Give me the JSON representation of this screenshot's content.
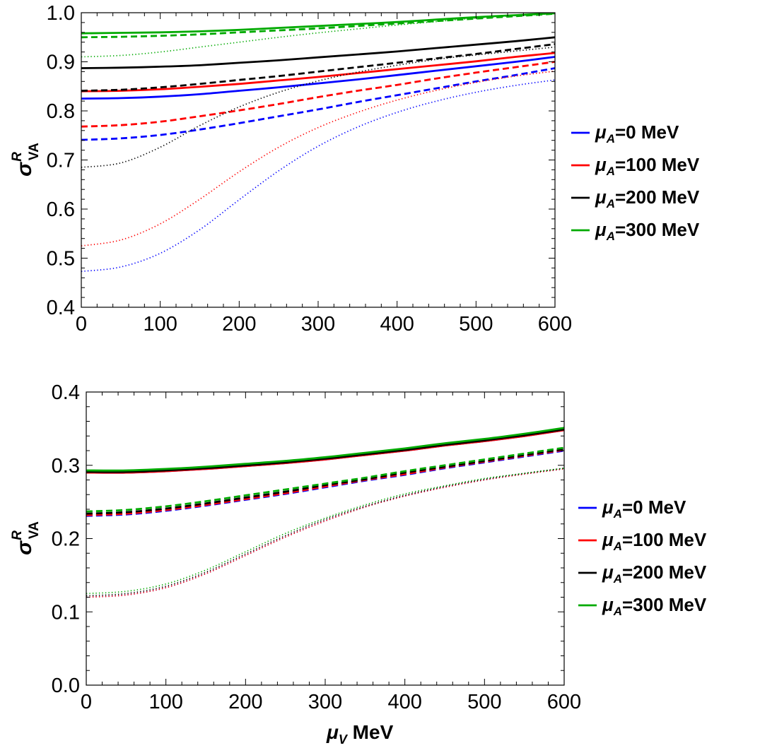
{
  "chart_data": [
    {
      "type": "line",
      "ylabel": {
        "symbol": "σ",
        "sup": "R",
        "sub": "VA"
      },
      "xlabel": null,
      "xlim": [
        0,
        600
      ],
      "ylim": [
        0.4,
        1.0
      ],
      "xticks": [
        "0",
        "100",
        "200",
        "300",
        "400",
        "500",
        "600"
      ],
      "yticks": [
        "0.4",
        "0.5",
        "0.6",
        "0.7",
        "0.8",
        "0.9",
        "1.0"
      ],
      "legend": {
        "position": "right",
        "entries": [
          {
            "sym": "μ",
            "sub": "A",
            "text": "=0 MeV",
            "color": "#0000ff"
          },
          {
            "sym": "μ",
            "sub": "A",
            "text": "=100 MeV",
            "color": "#ff0000"
          },
          {
            "sym": "μ",
            "sub": "A",
            "text": "=200 MeV",
            "color": "#000000"
          },
          {
            "sym": "μ",
            "sub": "A",
            "text": "=300 MeV",
            "color": "#00aa00"
          }
        ]
      },
      "x": [
        0,
        50,
        100,
        150,
        200,
        250,
        300,
        350,
        400,
        450,
        500,
        550,
        600
      ],
      "series": [
        {
          "color": "#0000ff",
          "style": "solid",
          "values": [
            0.825,
            0.826,
            0.829,
            0.834,
            0.841,
            0.848,
            0.856,
            0.864,
            0.873,
            0.882,
            0.891,
            0.9,
            0.91
          ]
        },
        {
          "color": "#ff0000",
          "style": "solid",
          "values": [
            0.84,
            0.841,
            0.844,
            0.849,
            0.855,
            0.862,
            0.869,
            0.877,
            0.885,
            0.893,
            0.901,
            0.91,
            0.918
          ]
        },
        {
          "color": "#000000",
          "style": "solid",
          "values": [
            0.887,
            0.888,
            0.89,
            0.893,
            0.898,
            0.903,
            0.909,
            0.915,
            0.921,
            0.928,
            0.935,
            0.942,
            0.95
          ]
        },
        {
          "color": "#00aa00",
          "style": "solid",
          "values": [
            0.958,
            0.959,
            0.96,
            0.962,
            0.965,
            0.969,
            0.973,
            0.977,
            0.981,
            0.986,
            0.991,
            0.995,
            0.999
          ]
        },
        {
          "color": "#0000ff",
          "style": "dashed",
          "values": [
            0.741,
            0.744,
            0.751,
            0.762,
            0.775,
            0.789,
            0.803,
            0.818,
            0.832,
            0.846,
            0.86,
            0.873,
            0.887
          ]
        },
        {
          "color": "#ff0000",
          "style": "dashed",
          "values": [
            0.768,
            0.771,
            0.778,
            0.789,
            0.801,
            0.814,
            0.828,
            0.841,
            0.853,
            0.866,
            0.878,
            0.889,
            0.9
          ]
        },
        {
          "color": "#000000",
          "style": "dashed",
          "values": [
            0.841,
            0.843,
            0.848,
            0.855,
            0.863,
            0.871,
            0.88,
            0.889,
            0.898,
            0.907,
            0.916,
            0.926,
            0.936
          ]
        },
        {
          "color": "#00aa00",
          "style": "dashed",
          "values": [
            0.95,
            0.951,
            0.953,
            0.956,
            0.96,
            0.964,
            0.968,
            0.973,
            0.978,
            0.983,
            0.988,
            0.993,
            0.998
          ]
        },
        {
          "color": "#0000ff",
          "style": "dotted",
          "values": [
            0.473,
            0.482,
            0.51,
            0.558,
            0.619,
            0.678,
            0.728,
            0.767,
            0.797,
            0.82,
            0.838,
            0.852,
            0.863
          ]
        },
        {
          "color": "#ff0000",
          "style": "dotted",
          "values": [
            0.525,
            0.537,
            0.57,
            0.62,
            0.676,
            0.726,
            0.766,
            0.797,
            0.822,
            0.842,
            0.858,
            0.871,
            0.881
          ]
        },
        {
          "color": "#000000",
          "style": "dotted",
          "values": [
            0.685,
            0.694,
            0.726,
            0.77,
            0.808,
            0.838,
            0.861,
            0.879,
            0.893,
            0.905,
            0.914,
            0.922,
            0.93
          ]
        },
        {
          "color": "#00aa00",
          "style": "dotted",
          "values": [
            0.91,
            0.913,
            0.92,
            0.93,
            0.94,
            0.95,
            0.959,
            0.967,
            0.975,
            0.982,
            0.989,
            0.994,
            0.998
          ]
        }
      ]
    },
    {
      "type": "line",
      "ylabel": {
        "symbol": "σ",
        "sup": "R",
        "sub": "VA"
      },
      "xlabel": {
        "symbol": "μ",
        "sub": "V",
        "text": " MeV"
      },
      "xlim": [
        0,
        600
      ],
      "ylim": [
        0.0,
        0.4
      ],
      "xticks": [
        "0",
        "100",
        "200",
        "300",
        "400",
        "500",
        "600"
      ],
      "yticks": [
        "0.0",
        "0.1",
        "0.2",
        "0.3",
        "0.4"
      ],
      "legend": {
        "position": "right",
        "entries": [
          {
            "sym": "μ",
            "sub": "A",
            "text": "=0 MeV",
            "color": "#0000ff"
          },
          {
            "sym": "μ",
            "sub": "A",
            "text": "=100 MeV",
            "color": "#ff0000"
          },
          {
            "sym": "μ",
            "sub": "A",
            "text": "=200 MeV",
            "color": "#000000"
          },
          {
            "sym": "μ",
            "sub": "A",
            "text": "=300 MeV",
            "color": "#00aa00"
          }
        ]
      },
      "x": [
        0,
        50,
        100,
        150,
        200,
        250,
        300,
        350,
        400,
        450,
        500,
        550,
        600
      ],
      "series": [
        {
          "color": "#0000ff",
          "style": "solid",
          "values": [
            0.29,
            0.29,
            0.292,
            0.295,
            0.299,
            0.303,
            0.308,
            0.314,
            0.32,
            0.327,
            0.333,
            0.34,
            0.348
          ]
        },
        {
          "color": "#ff0000",
          "style": "solid",
          "values": [
            0.29,
            0.29,
            0.292,
            0.295,
            0.299,
            0.303,
            0.308,
            0.314,
            0.32,
            0.327,
            0.333,
            0.34,
            0.348
          ]
        },
        {
          "color": "#000000",
          "style": "solid",
          "values": [
            0.291,
            0.291,
            0.293,
            0.296,
            0.3,
            0.304,
            0.309,
            0.315,
            0.321,
            0.328,
            0.334,
            0.341,
            0.349
          ]
        },
        {
          "color": "#00aa00",
          "style": "solid",
          "values": [
            0.293,
            0.293,
            0.295,
            0.298,
            0.302,
            0.306,
            0.311,
            0.317,
            0.323,
            0.33,
            0.336,
            0.343,
            0.351
          ]
        },
        {
          "color": "#0000ff",
          "style": "dashed",
          "values": [
            0.231,
            0.233,
            0.238,
            0.245,
            0.253,
            0.261,
            0.27,
            0.279,
            0.287,
            0.296,
            0.304,
            0.312,
            0.32
          ]
        },
        {
          "color": "#ff0000",
          "style": "dashed",
          "values": [
            0.232,
            0.234,
            0.239,
            0.246,
            0.254,
            0.262,
            0.271,
            0.28,
            0.288,
            0.297,
            0.305,
            0.313,
            0.321
          ]
        },
        {
          "color": "#000000",
          "style": "dashed",
          "values": [
            0.234,
            0.236,
            0.241,
            0.248,
            0.256,
            0.264,
            0.273,
            0.281,
            0.29,
            0.298,
            0.306,
            0.314,
            0.322
          ]
        },
        {
          "color": "#00aa00",
          "style": "dashed",
          "values": [
            0.237,
            0.239,
            0.244,
            0.251,
            0.259,
            0.267,
            0.275,
            0.283,
            0.292,
            0.3,
            0.308,
            0.316,
            0.324
          ]
        },
        {
          "color": "#0000ff",
          "style": "dotted",
          "values": [
            0.12,
            0.123,
            0.133,
            0.152,
            0.177,
            0.202,
            0.224,
            0.243,
            0.258,
            0.27,
            0.28,
            0.288,
            0.295
          ]
        },
        {
          "color": "#ff0000",
          "style": "dotted",
          "values": [
            0.12,
            0.123,
            0.133,
            0.152,
            0.177,
            0.202,
            0.224,
            0.243,
            0.258,
            0.27,
            0.28,
            0.288,
            0.295
          ]
        },
        {
          "color": "#000000",
          "style": "dotted",
          "values": [
            0.122,
            0.125,
            0.135,
            0.154,
            0.179,
            0.204,
            0.226,
            0.244,
            0.259,
            0.271,
            0.281,
            0.289,
            0.296
          ]
        },
        {
          "color": "#00aa00",
          "style": "dotted",
          "values": [
            0.125,
            0.128,
            0.138,
            0.157,
            0.182,
            0.207,
            0.228,
            0.246,
            0.261,
            0.272,
            0.282,
            0.289,
            0.296
          ]
        }
      ]
    }
  ]
}
